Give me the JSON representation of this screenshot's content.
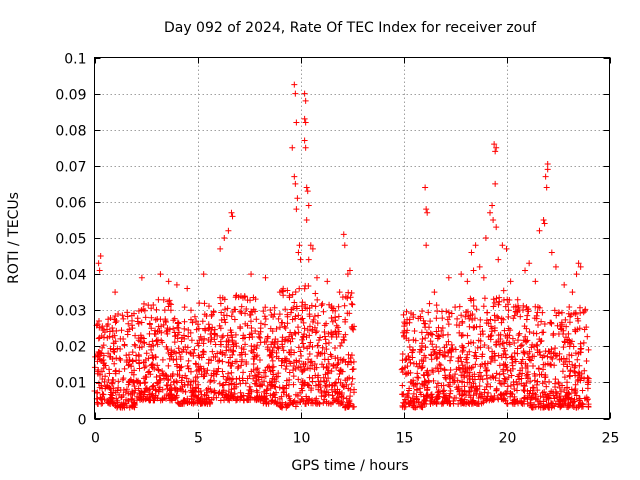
{
  "chart_data": {
    "type": "scatter",
    "title": "Day 092 of 2024, Rate Of TEC Index for receiver zouf",
    "xlabel": "GPS time / hours",
    "ylabel": "ROTI / TECUs",
    "xlim": [
      0,
      25
    ],
    "ylim": [
      0,
      0.1
    ],
    "x_ticks": [
      0,
      5,
      10,
      15,
      20,
      25
    ],
    "x_tick_labels": [
      "0",
      "5",
      "10",
      "15",
      "20",
      "25"
    ],
    "y_ticks": [
      0,
      0.01,
      0.02,
      0.03,
      0.04,
      0.05,
      0.06,
      0.07,
      0.08,
      0.09,
      0.1
    ],
    "y_tick_labels": [
      "0",
      "0.01",
      "0.02",
      "0.03",
      "0.04",
      "0.05",
      "0.06",
      "0.07",
      "0.08",
      "0.09",
      "0.1"
    ],
    "grid": true,
    "marker": "+",
    "marker_color": "#ff0000",
    "data_gap_hours": [
      12.6,
      14.9
    ],
    "series": [
      {
        "name": "ROTI",
        "color": "#ff0000",
        "points": [
          [
            0.2,
            0.043
          ],
          [
            0.25,
            0.041
          ],
          [
            0.3,
            0.045
          ],
          [
            1.0,
            0.035
          ],
          [
            2.3,
            0.039
          ],
          [
            3.2,
            0.04
          ],
          [
            3.6,
            0.038
          ],
          [
            4.0,
            0.037
          ],
          [
            4.5,
            0.036
          ],
          [
            5.3,
            0.04
          ],
          [
            6.1,
            0.047
          ],
          [
            6.3,
            0.05
          ],
          [
            6.5,
            0.052
          ],
          [
            6.65,
            0.057
          ],
          [
            6.7,
            0.056
          ],
          [
            7.6,
            0.04
          ],
          [
            8.3,
            0.039
          ],
          [
            9.0,
            0.035
          ],
          [
            9.6,
            0.075
          ],
          [
            9.7,
            0.0925
          ],
          [
            9.75,
            0.09
          ],
          [
            9.8,
            0.082
          ],
          [
            9.7,
            0.067
          ],
          [
            9.75,
            0.065
          ],
          [
            9.8,
            0.058
          ],
          [
            9.85,
            0.061
          ],
          [
            9.9,
            0.046
          ],
          [
            9.95,
            0.048
          ],
          [
            10.0,
            0.044
          ],
          [
            10.2,
            0.09
          ],
          [
            10.25,
            0.088
          ],
          [
            10.2,
            0.083
          ],
          [
            10.25,
            0.082
          ],
          [
            10.2,
            0.077
          ],
          [
            10.25,
            0.075
          ],
          [
            10.3,
            0.064
          ],
          [
            10.35,
            0.063
          ],
          [
            10.4,
            0.059
          ],
          [
            10.3,
            0.055
          ],
          [
            10.5,
            0.048
          ],
          [
            10.6,
            0.047
          ],
          [
            10.4,
            0.044
          ],
          [
            10.8,
            0.039
          ],
          [
            11.3,
            0.038
          ],
          [
            11.9,
            0.035
          ],
          [
            12.1,
            0.051
          ],
          [
            12.15,
            0.048
          ],
          [
            12.3,
            0.04
          ],
          [
            12.4,
            0.041
          ],
          [
            16.05,
            0.064
          ],
          [
            16.1,
            0.058
          ],
          [
            16.15,
            0.057
          ],
          [
            16.1,
            0.048
          ],
          [
            16.5,
            0.035
          ],
          [
            17.2,
            0.039
          ],
          [
            17.8,
            0.04
          ],
          [
            18.1,
            0.038
          ],
          [
            18.3,
            0.046
          ],
          [
            18.4,
            0.041
          ],
          [
            18.5,
            0.048
          ],
          [
            18.7,
            0.042
          ],
          [
            18.9,
            0.039
          ],
          [
            19.0,
            0.05
          ],
          [
            19.2,
            0.057
          ],
          [
            19.3,
            0.059
          ],
          [
            19.35,
            0.055
          ],
          [
            19.4,
            0.076
          ],
          [
            19.45,
            0.074
          ],
          [
            19.5,
            0.075
          ],
          [
            19.45,
            0.065
          ],
          [
            19.5,
            0.053
          ],
          [
            19.6,
            0.044
          ],
          [
            19.8,
            0.048
          ],
          [
            20.0,
            0.047
          ],
          [
            20.2,
            0.038
          ],
          [
            20.9,
            0.041
          ],
          [
            21.1,
            0.043
          ],
          [
            21.4,
            0.038
          ],
          [
            21.6,
            0.052
          ],
          [
            21.8,
            0.055
          ],
          [
            21.85,
            0.054
          ],
          [
            21.9,
            0.067
          ],
          [
            21.95,
            0.064
          ],
          [
            22.0,
            0.0705
          ],
          [
            22.0,
            0.069
          ],
          [
            22.2,
            0.046
          ],
          [
            22.4,
            0.042
          ],
          [
            22.8,
            0.037
          ],
          [
            23.2,
            0.035
          ],
          [
            23.4,
            0.04
          ],
          [
            23.5,
            0.043
          ],
          [
            23.6,
            0.042
          ]
        ],
        "envelope": [
          {
            "t0": 0.0,
            "t1": 1.0,
            "lo": 0.004,
            "hi": 0.028
          },
          {
            "t0": 1.0,
            "t1": 2.0,
            "lo": 0.003,
            "hi": 0.03
          },
          {
            "t0": 2.0,
            "t1": 3.0,
            "lo": 0.005,
            "hi": 0.032
          },
          {
            "t0": 3.0,
            "t1": 4.0,
            "lo": 0.005,
            "hi": 0.033
          },
          {
            "t0": 4.0,
            "t1": 5.0,
            "lo": 0.004,
            "hi": 0.031
          },
          {
            "t0": 5.0,
            "t1": 6.0,
            "lo": 0.004,
            "hi": 0.032
          },
          {
            "t0": 6.0,
            "t1": 7.0,
            "lo": 0.005,
            "hi": 0.035
          },
          {
            "t0": 7.0,
            "t1": 8.0,
            "lo": 0.005,
            "hi": 0.034
          },
          {
            "t0": 8.0,
            "t1": 9.0,
            "lo": 0.004,
            "hi": 0.031
          },
          {
            "t0": 9.0,
            "t1": 10.0,
            "lo": 0.003,
            "hi": 0.036
          },
          {
            "t0": 10.0,
            "t1": 11.0,
            "lo": 0.004,
            "hi": 0.037
          },
          {
            "t0": 11.0,
            "t1": 12.0,
            "lo": 0.004,
            "hi": 0.033
          },
          {
            "t0": 12.0,
            "t1": 12.6,
            "lo": 0.003,
            "hi": 0.035
          },
          {
            "t0": 14.9,
            "t1": 16.0,
            "lo": 0.003,
            "hi": 0.03
          },
          {
            "t0": 16.0,
            "t1": 17.0,
            "lo": 0.004,
            "hi": 0.032
          },
          {
            "t0": 17.0,
            "t1": 18.0,
            "lo": 0.004,
            "hi": 0.031
          },
          {
            "t0": 18.0,
            "t1": 19.0,
            "lo": 0.004,
            "hi": 0.034
          },
          {
            "t0": 19.0,
            "t1": 20.0,
            "lo": 0.005,
            "hi": 0.036
          },
          {
            "t0": 20.0,
            "t1": 21.0,
            "lo": 0.004,
            "hi": 0.033
          },
          {
            "t0": 21.0,
            "t1": 22.0,
            "lo": 0.003,
            "hi": 0.031
          },
          {
            "t0": 22.0,
            "t1": 23.0,
            "lo": 0.003,
            "hi": 0.03
          },
          {
            "t0": 23.0,
            "t1": 24.0,
            "lo": 0.003,
            "hi": 0.031
          }
        ],
        "background_count": 2600
      }
    ]
  }
}
